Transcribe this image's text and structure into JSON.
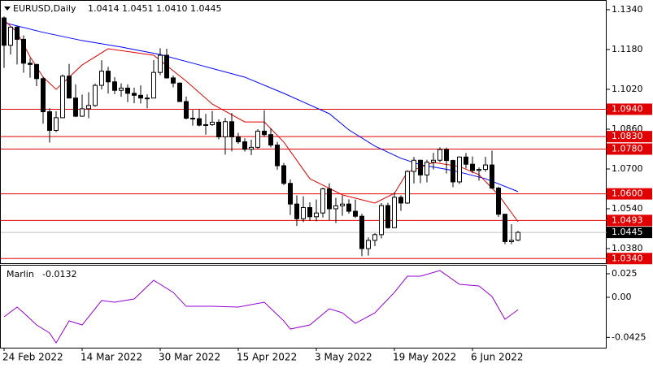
{
  "chart_data": [
    {
      "type": "candlestick",
      "title": "EURUSD,Daily",
      "header_values": [
        "1.0414",
        "1.0451",
        "1.0410",
        "1.0445"
      ],
      "categories": [
        "24 Feb 2022",
        null,
        null,
        null,
        null,
        null,
        null,
        null,
        null,
        null,
        null,
        null,
        "14 Mar 2022",
        null,
        null,
        null,
        null,
        null,
        null,
        null,
        null,
        null,
        null,
        null,
        "30 Mar 2022",
        null,
        null,
        null,
        null,
        null,
        null,
        null,
        null,
        null,
        null,
        null,
        "15 Apr 2022",
        null,
        null,
        null,
        null,
        null,
        null,
        null,
        null,
        null,
        null,
        null,
        "3 May 2022",
        null,
        null,
        null,
        null,
        null,
        null,
        null,
        null,
        null,
        null,
        null,
        "19 May 2022",
        null,
        null,
        null,
        null,
        null,
        null,
        null,
        null,
        null,
        null,
        null,
        "6 Jun 2022",
        null,
        null,
        null,
        null,
        null,
        null,
        null
      ],
      "open": [
        1.1307,
        1.1197,
        1.127,
        1.1221,
        1.1125,
        1.112,
        1.1063,
        1.093,
        1.0855,
        1.0906,
        1.1073,
        1.0985,
        1.0912,
        1.0942,
        1.0955,
        1.1036,
        1.1093,
        1.105,
        1.1016,
        1.1025,
        1.1004,
        1.0996,
        1.0985,
        1.0985,
        1.1088,
        1.1157,
        1.1066,
        1.1045,
        1.0971,
        1.0904,
        1.0902,
        1.0876,
        1.0878,
        1.0888,
        1.0829,
        1.089,
        1.0829,
        1.0809,
        1.0779,
        1.0787,
        1.0852,
        1.0838,
        1.0796,
        1.0713,
        1.0642,
        1.0559,
        1.05,
        1.0545,
        1.0508,
        1.0523,
        1.062,
        1.054,
        1.0552,
        1.0559,
        1.053,
        1.051,
        1.038,
        1.0413,
        1.0436,
        1.0553,
        1.0464,
        1.0586,
        1.0563,
        1.069,
        1.0735,
        1.0676,
        1.0727,
        1.0735,
        1.0778,
        1.0734,
        1.0648,
        1.0748,
        1.0719,
        1.0694,
        1.0698,
        1.0716,
        1.0623,
        1.0518,
        1.0408,
        1.0414
      ],
      "high": [
        1.1313,
        1.1273,
        1.1275,
        1.1237,
        1.1145,
        1.1123,
        1.1071,
        1.0944,
        1.0932,
        1.108,
        1.1122,
        1.104,
        1.0999,
        1.1008,
        1.1043,
        1.1137,
        1.111,
        1.1069,
        1.1044,
        1.104,
        1.1027,
        1.1036,
        1.1,
        1.1138,
        1.1185,
        1.1183,
        1.1076,
        1.1048,
        1.0991,
        1.0937,
        1.0939,
        1.0921,
        1.0933,
        1.0899,
        1.0905,
        1.0925,
        1.0845,
        1.0823,
        1.0818,
        1.086,
        1.0936,
        1.0863,
        1.0809,
        1.0724,
        1.0658,
        1.0594,
        1.059,
        1.0566,
        1.0577,
        1.0625,
        1.0642,
        1.0584,
        1.0593,
        1.0578,
        1.0577,
        1.052,
        1.0425,
        1.0442,
        1.0563,
        1.0564,
        1.0606,
        1.0594,
        1.0695,
        1.0748,
        1.0737,
        1.0737,
        1.0765,
        1.0787,
        1.0786,
        1.0737,
        1.075,
        1.0764,
        1.075,
        1.0706,
        1.0749,
        1.0774,
        1.0629,
        1.052,
        1.0478,
        1.0451
      ],
      "low": [
        1.1106,
        1.116,
        1.112,
        1.1087,
        1.1067,
        1.1033,
        1.0882,
        1.0806,
        1.0848,
        1.0904,
        1.0983,
        1.0908,
        1.091,
        1.0904,
        1.095,
        1.102,
        1.1003,
        1.1001,
        1.099,
        1.0969,
        1.0964,
        1.0963,
        1.0944,
        1.0984,
        1.1077,
        1.1063,
        1.1028,
        1.0969,
        1.0899,
        1.0874,
        1.0871,
        1.0838,
        1.0873,
        1.0819,
        1.0758,
        1.0771,
        1.0801,
        1.077,
        1.0756,
        1.078,
        1.0829,
        1.0787,
        1.0697,
        1.0635,
        1.0515,
        1.0471,
        1.0487,
        1.0492,
        1.049,
        1.0505,
        1.0494,
        1.0483,
        1.0512,
        1.052,
        1.0503,
        1.035,
        1.0352,
        1.039,
        1.0421,
        1.046,
        1.0463,
        1.0532,
        1.056,
        1.0642,
        1.0643,
        1.0646,
        1.0698,
        1.0727,
        1.0682,
        1.0627,
        1.064,
        1.0702,
        1.0683,
        1.0653,
        1.0689,
        1.062,
        1.0507,
        1.0398,
        1.0398,
        1.041
      ],
      "close": [
        1.1197,
        1.127,
        1.1221,
        1.1125,
        1.112,
        1.1063,
        1.093,
        1.0855,
        1.0906,
        1.1073,
        1.0985,
        1.0912,
        1.0942,
        1.0955,
        1.1036,
        1.1093,
        1.105,
        1.1016,
        1.1025,
        1.1004,
        1.0996,
        1.0985,
        1.0985,
        1.1088,
        1.1157,
        1.1066,
        1.1045,
        1.0971,
        1.0904,
        1.0902,
        1.0876,
        1.0878,
        1.0888,
        1.0829,
        1.089,
        1.0829,
        1.0809,
        1.0779,
        1.0787,
        1.0852,
        1.0838,
        1.0796,
        1.0713,
        1.0642,
        1.0559,
        1.05,
        1.0545,
        1.0508,
        1.0523,
        1.062,
        1.054,
        1.0552,
        1.0559,
        1.053,
        1.051,
        1.038,
        1.0413,
        1.0436,
        1.0553,
        1.0464,
        1.0586,
        1.0563,
        1.069,
        1.0735,
        1.0676,
        1.0727,
        1.0735,
        1.0778,
        1.0734,
        1.0648,
        1.0748,
        1.0719,
        1.0694,
        1.0698,
        1.0716,
        1.0623,
        1.0518,
        1.0408,
        1.0413,
        1.0445
      ],
      "up_color": "#ffffff",
      "down_color": "#000000",
      "series": [
        {
          "color": "#0000ff",
          "x": [
            0,
            6,
            12,
            18,
            24,
            30,
            37,
            43,
            50,
            53,
            57,
            61,
            64,
            69,
            74,
            79
          ],
          "values": [
            1.1288,
            1.1249,
            1.1216,
            1.119,
            1.116,
            1.1118,
            1.1069,
            1.1004,
            1.0922,
            1.0857,
            1.0792,
            1.0743,
            1.0717,
            1.0694,
            1.0661,
            1.0609
          ]
        },
        {
          "color": "#e00000",
          "x": [
            0,
            2,
            4,
            6,
            8,
            12,
            16,
            23,
            28,
            32,
            37,
            40,
            43,
            47,
            52,
            57,
            60,
            62,
            66,
            70,
            73,
            76,
            79
          ],
          "values": [
            1.1298,
            1.1249,
            1.1151,
            1.1069,
            1.102,
            1.1118,
            1.1183,
            1.1157,
            1.1053,
            1.0961,
            1.0889,
            1.0889,
            1.0808,
            1.0661,
            1.0596,
            1.0563,
            1.0602,
            1.0687,
            1.0726,
            1.071,
            1.0677,
            1.0596,
            1.0488
          ]
        }
      ],
      "ylim": [
        1.0318,
        1.1379
      ],
      "yticks": [
        {
          "value": 1.134,
          "label": "1.1340"
        },
        {
          "value": 1.118,
          "label": "1.1180"
        },
        {
          "value": 1.102,
          "label": "1.1020"
        },
        {
          "value": 1.086,
          "label": "1.0860"
        },
        {
          "value": 1.07,
          "label": "1.0700"
        },
        {
          "value": 1.054,
          "label": "1.0540"
        },
        {
          "value": 1.038,
          "label": "1.0380"
        }
      ],
      "levels": [
        {
          "value": 1.094,
          "label": "1.0940"
        },
        {
          "value": 1.083,
          "label": "1.0830"
        },
        {
          "value": 1.078,
          "label": "1.0780"
        },
        {
          "value": 1.06,
          "label": "1.0600"
        },
        {
          "value": 1.0493,
          "label": "1.0493"
        },
        {
          "value": 1.034,
          "label": "1.0340"
        }
      ],
      "level_color": "#e00000",
      "current_price": {
        "value": 1.0445,
        "label": "1.0445"
      }
    },
    {
      "type": "line",
      "series": [
        {
          "name": "Marlin",
          "color": "#9400d3",
          "x": [
            0,
            2,
            3,
            5,
            7,
            8,
            10,
            12,
            15,
            17,
            20,
            23,
            26,
            28,
            32,
            36,
            40,
            43,
            44,
            47,
            50,
            52,
            54,
            57,
            60,
            62,
            64,
            67,
            70,
            73,
            75,
            77,
            79
          ],
          "values": [
            -0.0207,
            -0.0103,
            -0.0164,
            -0.0293,
            -0.0379,
            -0.0483,
            -0.025,
            -0.0293,
            -0.0034,
            -0.0052,
            -0.0017,
            0.0181,
            0.0052,
            -0.0095,
            -0.0095,
            -0.0103,
            -0.0052,
            -0.025,
            -0.0336,
            -0.0293,
            -0.0121,
            -0.0164,
            -0.0276,
            -0.0164,
            0.0052,
            0.0224,
            0.0224,
            0.0284,
            0.0138,
            0.0121,
            0.0009,
            -0.0233,
            -0.0132
          ]
        }
      ],
      "ylim": [
        -0.0534,
        0.0336
      ],
      "yticks": [
        0.025,
        {
          "value": 0,
          "label": "0.00"
        },
        -0.0425
      ]
    }
  ]
}
